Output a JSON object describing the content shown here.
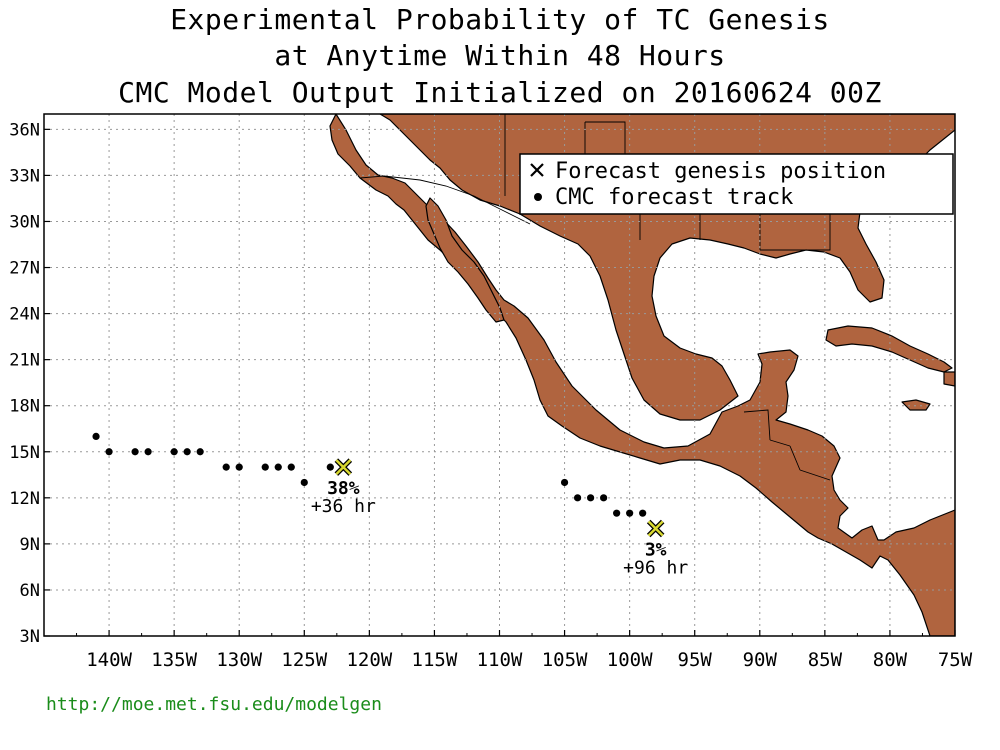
{
  "title": {
    "line1": "Experimental Probability of TC Genesis",
    "line2": "at Anytime Within 48 Hours",
    "line3": "CMC Model Output Initialized on 20160624 00Z"
  },
  "legend": {
    "genesis_label": "Forecast genesis position",
    "track_label": "CMC forecast track"
  },
  "axes": {
    "lon_range": [
      -145,
      -75
    ],
    "lat_range": [
      3,
      37
    ],
    "x_ticks": [
      "140W",
      "135W",
      "130W",
      "125W",
      "120W",
      "115W",
      "110W",
      "105W",
      "100W",
      "95W",
      "90W",
      "85W",
      "80W",
      "75W"
    ],
    "y_ticks": [
      "3N",
      "6N",
      "9N",
      "12N",
      "15N",
      "18N",
      "21N",
      "24N",
      "27N",
      "30N",
      "33N",
      "36N"
    ]
  },
  "colors": {
    "land": "#b0643f",
    "genesis_marker": "#d8d830",
    "url": "#1a8c1a"
  },
  "chart_data": {
    "type": "scatter",
    "xlabel": "",
    "ylabel": "",
    "xlim": [
      -145,
      -75
    ],
    "ylim": [
      3,
      37
    ],
    "grid": true,
    "legend_position": "top-right",
    "series": [
      {
        "name": "CMC forecast track",
        "points": [
          [
            -141,
            16
          ],
          [
            -140,
            15
          ],
          [
            -138,
            15
          ],
          [
            -137,
            15
          ],
          [
            -135,
            15
          ],
          [
            -134,
            15
          ],
          [
            -133,
            15
          ],
          [
            -131,
            14
          ],
          [
            -130,
            14
          ],
          [
            -128,
            14
          ],
          [
            -127,
            14
          ],
          [
            -126,
            14
          ],
          [
            -125,
            13
          ],
          [
            -123,
            14
          ],
          [
            -105,
            13
          ],
          [
            -104,
            12
          ],
          [
            -103,
            12
          ],
          [
            -102,
            12
          ],
          [
            -101,
            11
          ],
          [
            -100,
            11
          ],
          [
            -99,
            11
          ]
        ]
      }
    ],
    "genesis": [
      {
        "lon": -122,
        "lat": 14,
        "probability": "38%",
        "lead": "+36 hr"
      },
      {
        "lon": -98,
        "lat": 10,
        "probability": "3%",
        "lead": "+96 hr"
      }
    ]
  },
  "footer": {
    "url": "http://moe.met.fsu.edu/modelgen"
  }
}
